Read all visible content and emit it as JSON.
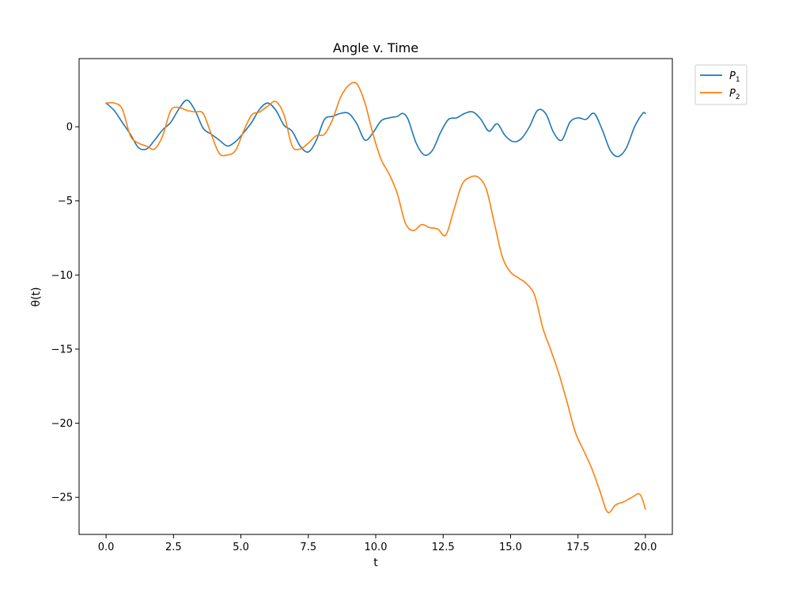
{
  "chart_data": {
    "type": "line",
    "title": "Angle v. Time",
    "xlabel": "t",
    "ylabel": "θ(t)",
    "xlim": [
      -1.0,
      21.0
    ],
    "ylim": [
      -27.5,
      4.6
    ],
    "xticks": [
      0.0,
      2.5,
      5.0,
      7.5,
      10.0,
      12.5,
      15.0,
      17.5,
      20.0
    ],
    "xtick_labels": [
      "0.0",
      "2.5",
      "5.0",
      "7.5",
      "10.0",
      "12.5",
      "15.0",
      "17.5",
      "20.0"
    ],
    "yticks": [
      0,
      -5,
      -10,
      -15,
      -20,
      -25
    ],
    "ytick_labels": [
      "0",
      "−5",
      "−10",
      "−15",
      "−20",
      "−25"
    ],
    "grid": false,
    "legend_position": "outside-top-right",
    "series": [
      {
        "name": "P",
        "subscript": "1",
        "color": "#1f77b4",
        "x": [
          0.0,
          0.3,
          0.6,
          0.9,
          1.2,
          1.5,
          1.8,
          2.1,
          2.4,
          2.7,
          3.0,
          3.3,
          3.6,
          3.9,
          4.2,
          4.5,
          4.8,
          5.1,
          5.4,
          5.7,
          6.0,
          6.3,
          6.6,
          6.9,
          7.2,
          7.5,
          7.8,
          8.1,
          8.4,
          8.7,
          9.0,
          9.3,
          9.6,
          9.9,
          10.2,
          10.5,
          10.8,
          11.0,
          11.2,
          11.5,
          11.8,
          12.1,
          12.4,
          12.7,
          13.0,
          13.3,
          13.6,
          13.9,
          14.2,
          14.5,
          14.8,
          15.1,
          15.4,
          15.7,
          16.0,
          16.3,
          16.6,
          16.9,
          17.2,
          17.5,
          17.8,
          18.1,
          18.4,
          18.7,
          19.0,
          19.3,
          19.6,
          19.9,
          20.0
        ],
        "y": [
          1.6,
          1.1,
          0.3,
          -0.5,
          -1.4,
          -1.5,
          -0.9,
          -0.2,
          0.3,
          1.2,
          1.8,
          1.1,
          -0.1,
          -0.5,
          -0.9,
          -1.3,
          -1.0,
          -0.4,
          0.3,
          1.2,
          1.6,
          1.1,
          0.1,
          -0.3,
          -1.3,
          -1.7,
          -0.9,
          0.5,
          0.7,
          0.9,
          0.9,
          0.2,
          -0.9,
          -0.4,
          0.4,
          0.6,
          0.7,
          0.9,
          0.5,
          -1.1,
          -1.9,
          -1.6,
          -0.4,
          0.5,
          0.6,
          0.9,
          1.0,
          0.5,
          -0.3,
          0.2,
          -0.6,
          -1.0,
          -0.8,
          0.0,
          1.1,
          0.9,
          -0.4,
          -0.9,
          0.3,
          0.6,
          0.5,
          0.9,
          -0.2,
          -1.6,
          -2.0,
          -1.4,
          0.0,
          0.9,
          0.9
        ]
      },
      {
        "name": "P",
        "subscript": "2",
        "color": "#ff7f0e",
        "x": [
          0.0,
          0.3,
          0.6,
          0.9,
          1.2,
          1.5,
          1.8,
          2.1,
          2.4,
          2.7,
          3.0,
          3.3,
          3.6,
          3.9,
          4.2,
          4.5,
          4.8,
          5.1,
          5.4,
          5.7,
          6.0,
          6.3,
          6.6,
          6.9,
          7.2,
          7.5,
          7.8,
          8.1,
          8.4,
          8.7,
          9.0,
          9.3,
          9.6,
          9.9,
          10.2,
          10.5,
          10.8,
          11.1,
          11.4,
          11.7,
          12.0,
          12.3,
          12.6,
          12.9,
          13.2,
          13.5,
          13.8,
          14.1,
          14.4,
          14.7,
          15.0,
          15.3,
          15.6,
          15.9,
          16.2,
          16.5,
          16.8,
          17.1,
          17.4,
          17.7,
          18.0,
          18.3,
          18.6,
          18.9,
          19.2,
          19.5,
          19.8,
          20.0
        ],
        "y": [
          1.6,
          1.6,
          1.2,
          -0.6,
          -1.1,
          -1.3,
          -1.5,
          -0.6,
          1.1,
          1.3,
          1.1,
          1.0,
          0.9,
          -0.5,
          -1.8,
          -1.9,
          -1.6,
          -0.3,
          0.8,
          1.0,
          1.4,
          1.7,
          0.8,
          -1.3,
          -1.5,
          -1.1,
          -0.6,
          -0.5,
          0.5,
          2.0,
          2.8,
          2.9,
          1.6,
          -0.5,
          -2.2,
          -3.2,
          -4.5,
          -6.5,
          -7.0,
          -6.6,
          -6.8,
          -6.9,
          -7.3,
          -5.6,
          -3.9,
          -3.4,
          -3.4,
          -4.2,
          -6.5,
          -8.8,
          -9.8,
          -10.2,
          -10.6,
          -11.4,
          -13.6,
          -15.1,
          -16.7,
          -18.6,
          -20.6,
          -21.8,
          -23.0,
          -24.5,
          -26.0,
          -25.5,
          -25.3,
          -25.0,
          -24.8,
          -25.8
        ]
      }
    ]
  }
}
